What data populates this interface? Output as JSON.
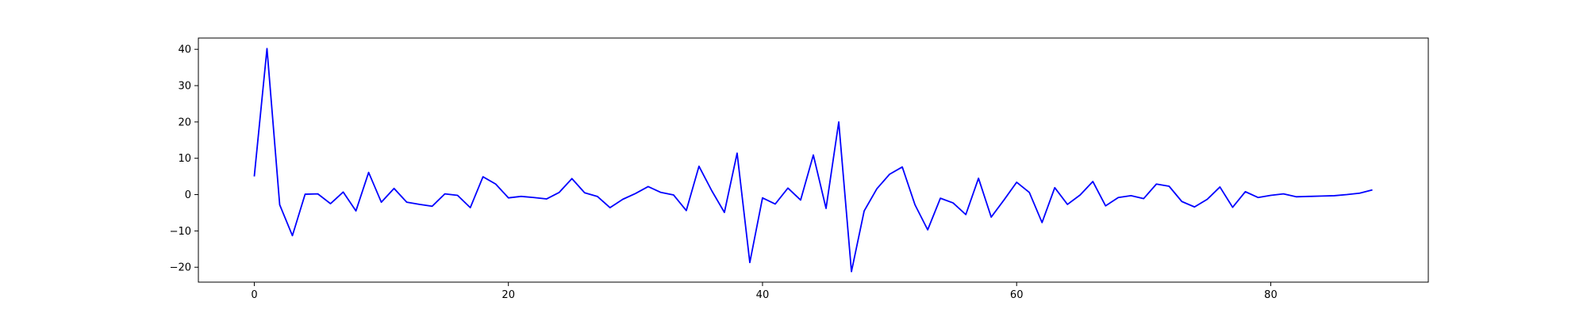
{
  "chart_data": {
    "type": "line",
    "title": "",
    "xlabel": "",
    "ylabel": "",
    "xlim": [
      -4.4,
      92.4
    ],
    "ylim": [
      -24.1,
      43.1
    ],
    "grid": false,
    "legend": "none",
    "xticks": [
      0,
      20,
      40,
      60,
      80
    ],
    "yticks": [
      -20,
      -10,
      0,
      10,
      20,
      30,
      40
    ],
    "series": [
      {
        "color": "#0000ff",
        "x": [
          0,
          1,
          2,
          3,
          4,
          5,
          6,
          7,
          8,
          9,
          10,
          11,
          12,
          13,
          14,
          15,
          16,
          17,
          18,
          19,
          20,
          21,
          22,
          23,
          24,
          25,
          26,
          27,
          28,
          29,
          30,
          31,
          32,
          33,
          34,
          35,
          36,
          37,
          38,
          39,
          40,
          41,
          42,
          43,
          44,
          45,
          46,
          47,
          48,
          49,
          50,
          51,
          52,
          53,
          54,
          55,
          56,
          57,
          58,
          59,
          60,
          61,
          62,
          63,
          64,
          65,
          66,
          67,
          68,
          69,
          70,
          71,
          72,
          73,
          74,
          75,
          76,
          77,
          78,
          79,
          80,
          81,
          82,
          83,
          84,
          85,
          86,
          87,
          88
        ],
        "y": [
          5,
          40.2,
          -2.8,
          -11.3,
          0.1,
          0.2,
          -2.5,
          0.7,
          -4.5,
          6.1,
          -2.1,
          1.7,
          -2.1,
          -2.7,
          -3.2,
          0.2,
          -0.2,
          -3.6,
          4.9,
          2.9,
          -0.9,
          -0.5,
          -0.8,
          -1.2,
          0.6,
          4.4,
          0.5,
          -0.5,
          -3.6,
          -1.3,
          0.3,
          2.2,
          0.6,
          -0.1,
          -4.4,
          7.8,
          1.1,
          -4.9,
          11.4,
          -18.7,
          -0.9,
          -2.6,
          1.8,
          -1.5,
          10.9,
          -3.8,
          20,
          -21.2,
          -4.5,
          1.6,
          5.6,
          7.6,
          -2.8,
          -9.7,
          -1,
          -2.3,
          -5.5,
          4.5,
          -6.2,
          -1.5,
          3.4,
          0.6,
          -7.7,
          1.9,
          -2.7,
          -0.1,
          3.6,
          -3.1,
          -0.8,
          -0.3,
          -1.1,
          2.9,
          2.3,
          -1.9,
          -3.4,
          -1.3,
          2.1,
          -3.5,
          0.8,
          -0.8,
          -0.2,
          0.2,
          -0.6,
          -0.5,
          -0.4,
          -0.3,
          0,
          0.4,
          1.3
        ]
      }
    ]
  }
}
